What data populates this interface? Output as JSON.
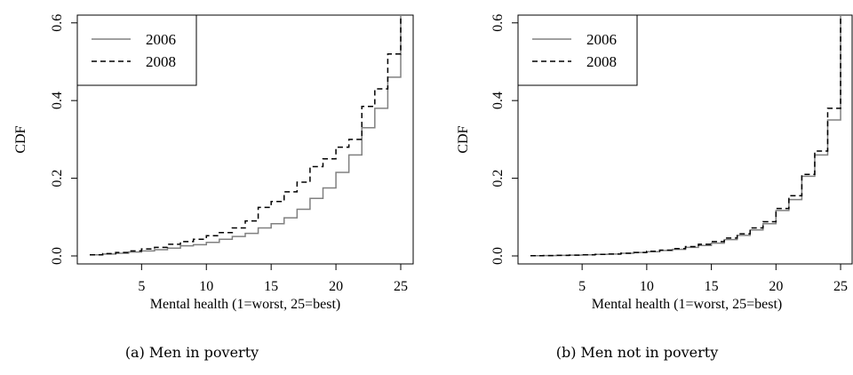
{
  "chart_data": [
    {
      "type": "line",
      "step": true,
      "caption": "(a) Men in poverty",
      "xlabel": "Mental health (1=worst, 25=best)",
      "ylabel": "CDF",
      "xlim": [
        1,
        25
      ],
      "ylim": [
        0,
        0.62
      ],
      "xticks": [
        "5",
        "10",
        "15",
        "20",
        "25"
      ],
      "yticks": [
        "0.0",
        "0.2",
        "0.4",
        "0.6"
      ],
      "grid": false,
      "legend_position": "top-left",
      "x": [
        1,
        2,
        3,
        4,
        5,
        6,
        7,
        8,
        9,
        10,
        11,
        12,
        13,
        14,
        15,
        16,
        17,
        18,
        19,
        20,
        21,
        22,
        23,
        24,
        25
      ],
      "series": [
        {
          "name": "2006",
          "color": "#808080",
          "line_style": "solid",
          "values": [
            0.003,
            0.005,
            0.007,
            0.01,
            0.013,
            0.016,
            0.02,
            0.026,
            0.029,
            0.035,
            0.043,
            0.05,
            0.058,
            0.072,
            0.083,
            0.098,
            0.12,
            0.148,
            0.175,
            0.215,
            0.26,
            0.33,
            0.38,
            0.46,
            0.54
          ]
        },
        {
          "name": "2008",
          "color": "#000000",
          "line_style": "dashed",
          "values": [
            0.003,
            0.006,
            0.009,
            0.013,
            0.018,
            0.022,
            0.03,
            0.037,
            0.043,
            0.052,
            0.06,
            0.072,
            0.09,
            0.125,
            0.14,
            0.165,
            0.19,
            0.23,
            0.25,
            0.28,
            0.3,
            0.385,
            0.43,
            0.52,
            0.6
          ]
        }
      ]
    },
    {
      "type": "line",
      "step": true,
      "caption": "(b) Men not in poverty",
      "xlabel": "Mental health (1=worst, 25=best)",
      "ylabel": "CDF",
      "xlim": [
        1,
        25
      ],
      "ylim": [
        0,
        0.62
      ],
      "xticks": [
        "5",
        "10",
        "15",
        "20",
        "25"
      ],
      "yticks": [
        "0.0",
        "0.2",
        "0.4",
        "0.6"
      ],
      "grid": false,
      "legend_position": "top-left",
      "x": [
        1,
        2,
        3,
        4,
        5,
        6,
        7,
        8,
        9,
        10,
        11,
        12,
        13,
        14,
        15,
        16,
        17,
        18,
        19,
        20,
        21,
        22,
        23,
        24,
        25
      ],
      "series": [
        {
          "name": "2006",
          "color": "#808080",
          "line_style": "solid",
          "values": [
            0.0005,
            0.001,
            0.0015,
            0.002,
            0.003,
            0.004,
            0.005,
            0.007,
            0.009,
            0.011,
            0.014,
            0.017,
            0.022,
            0.027,
            0.033,
            0.042,
            0.053,
            0.067,
            0.083,
            0.117,
            0.145,
            0.205,
            0.26,
            0.35,
            0.46
          ]
        },
        {
          "name": "2008",
          "color": "#000000",
          "line_style": "dashed",
          "values": [
            0.0005,
            0.001,
            0.0015,
            0.002,
            0.003,
            0.004,
            0.005,
            0.007,
            0.009,
            0.012,
            0.015,
            0.019,
            0.024,
            0.03,
            0.037,
            0.046,
            0.057,
            0.072,
            0.088,
            0.122,
            0.155,
            0.21,
            0.27,
            0.38,
            0.475
          ]
        }
      ]
    }
  ]
}
